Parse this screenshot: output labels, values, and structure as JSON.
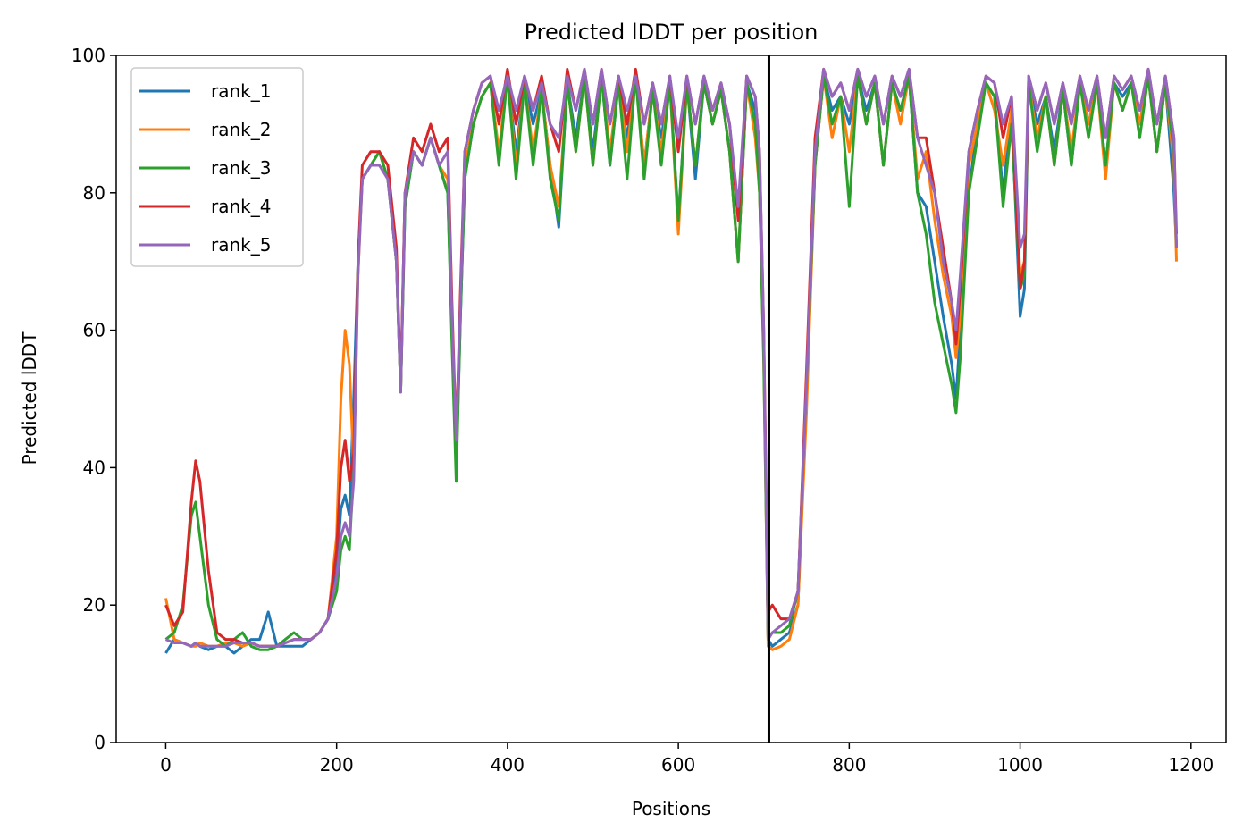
{
  "chart_data": {
    "type": "line",
    "title": "Predicted lDDT per position",
    "xlabel": "Positions",
    "ylabel": "Predicted lDDT",
    "xlim": [
      -58,
      1241
    ],
    "ylim": [
      0,
      100
    ],
    "xticks": [
      0,
      200,
      400,
      600,
      800,
      1000,
      1200
    ],
    "yticks": [
      0,
      20,
      40,
      60,
      80,
      100
    ],
    "grid": false,
    "legend_position": "upper-left",
    "vertical_line": 706,
    "x": [
      0,
      10,
      20,
      30,
      35,
      40,
      50,
      60,
      70,
      80,
      90,
      100,
      110,
      120,
      130,
      140,
      150,
      160,
      170,
      180,
      190,
      200,
      205,
      210,
      215,
      220,
      225,
      230,
      240,
      250,
      260,
      270,
      275,
      280,
      290,
      300,
      310,
      320,
      330,
      335,
      340,
      345,
      350,
      360,
      370,
      380,
      390,
      400,
      410,
      420,
      430,
      440,
      450,
      460,
      470,
      480,
      490,
      500,
      510,
      520,
      530,
      540,
      550,
      560,
      570,
      580,
      590,
      600,
      610,
      620,
      630,
      640,
      650,
      660,
      670,
      680,
      690,
      695,
      700,
      705,
      710,
      720,
      730,
      740,
      750,
      760,
      770,
      780,
      790,
      800,
      810,
      820,
      830,
      840,
      850,
      860,
      870,
      880,
      890,
      900,
      910,
      920,
      925,
      930,
      940,
      950,
      960,
      970,
      980,
      990,
      1000,
      1005,
      1010,
      1020,
      1030,
      1040,
      1050,
      1060,
      1070,
      1080,
      1090,
      1100,
      1110,
      1120,
      1130,
      1140,
      1150,
      1160,
      1170,
      1180,
      1183
    ],
    "series": [
      {
        "name": "rank_1",
        "color": "#1f77b4",
        "values": [
          13,
          15,
          14.5,
          14,
          14.5,
          14,
          13.5,
          14,
          14,
          13,
          14,
          15,
          15,
          19,
          14,
          14,
          14,
          14,
          15,
          16,
          18,
          25,
          34,
          36,
          33,
          50,
          70,
          82,
          84,
          86,
          82,
          70,
          51,
          78,
          86,
          84,
          88,
          84,
          80,
          60,
          40,
          62,
          82,
          90,
          94,
          96,
          92,
          97,
          86,
          96,
          90,
          95,
          84,
          75,
          96,
          88,
          97,
          86,
          97,
          84,
          96,
          88,
          97,
          84,
          95,
          88,
          96,
          76,
          96,
          82,
          96,
          90,
          95,
          86,
          70,
          96,
          92,
          80,
          58,
          15,
          14,
          15,
          16,
          20,
          50,
          84,
          97,
          92,
          94,
          90,
          97,
          92,
          96,
          84,
          96,
          92,
          97,
          80,
          78,
          70,
          62,
          55,
          50,
          60,
          80,
          90,
          96,
          94,
          80,
          92,
          62,
          66,
          96,
          90,
          94,
          86,
          95,
          84,
          96,
          90,
          96,
          84,
          96,
          94,
          96,
          90,
          97,
          86,
          96,
          80,
          72
        ]
      },
      {
        "name": "rank_2",
        "color": "#ff7f0e",
        "values": [
          21,
          15,
          14.5,
          14,
          14,
          14.5,
          14,
          14,
          14.5,
          14.5,
          14,
          14.5,
          14,
          14,
          14,
          14.5,
          15,
          15,
          15,
          16,
          18,
          30,
          50,
          60,
          55,
          40,
          68,
          82,
          84,
          86,
          82,
          70,
          51,
          80,
          86,
          84,
          88,
          84,
          82,
          62,
          42,
          64,
          84,
          90,
          94,
          96,
          86,
          97,
          84,
          96,
          86,
          95,
          84,
          78,
          96,
          86,
          97,
          84,
          97,
          86,
          96,
          86,
          97,
          84,
          95,
          86,
          96,
          74,
          96,
          84,
          96,
          90,
          95,
          86,
          70,
          96,
          88,
          80,
          56,
          14,
          13.5,
          14,
          15,
          20,
          48,
          84,
          97,
          88,
          94,
          86,
          97,
          90,
          96,
          84,
          96,
          90,
          97,
          82,
          86,
          76,
          68,
          62,
          56,
          62,
          84,
          90,
          96,
          92,
          84,
          92,
          68,
          70,
          96,
          88,
          94,
          84,
          95,
          86,
          96,
          90,
          96,
          82,
          96,
          92,
          96,
          90,
          97,
          86,
          96,
          84,
          70
        ]
      },
      {
        "name": "rank_3",
        "color": "#2ca02c",
        "values": [
          15,
          16,
          20,
          33,
          35,
          30,
          20,
          15,
          14,
          15,
          16,
          14,
          13.5,
          13.5,
          14,
          15,
          16,
          15,
          15,
          16,
          18,
          22,
          28,
          30,
          28,
          40,
          70,
          82,
          84,
          86,
          82,
          70,
          51,
          78,
          86,
          84,
          88,
          84,
          80,
          58,
          38,
          62,
          82,
          90,
          94,
          96,
          84,
          97,
          82,
          96,
          84,
          95,
          82,
          76,
          96,
          86,
          97,
          84,
          97,
          84,
          96,
          82,
          97,
          82,
          95,
          84,
          96,
          76,
          96,
          84,
          96,
          90,
          95,
          86,
          70,
          96,
          90,
          80,
          55,
          15,
          16,
          16,
          17,
          22,
          52,
          84,
          97,
          90,
          94,
          78,
          97,
          90,
          96,
          84,
          96,
          92,
          97,
          80,
          74,
          64,
          58,
          52,
          48,
          56,
          80,
          88,
          96,
          94,
          78,
          90,
          66,
          68,
          96,
          86,
          94,
          84,
          95,
          84,
          96,
          88,
          96,
          84,
          96,
          92,
          96,
          88,
          97,
          86,
          96,
          86,
          72
        ]
      },
      {
        "name": "rank_4",
        "color": "#d62728",
        "values": [
          20,
          17,
          19,
          35,
          41,
          38,
          25,
          16,
          15,
          15,
          14.5,
          14.5,
          14,
          14,
          14,
          14.5,
          15,
          15,
          15,
          16,
          18,
          28,
          40,
          44,
          38,
          42,
          70,
          84,
          86,
          86,
          84,
          72,
          52,
          80,
          88,
          86,
          90,
          86,
          88,
          64,
          44,
          66,
          86,
          92,
          96,
          97,
          90,
          98,
          90,
          97,
          92,
          97,
          90,
          86,
          98,
          92,
          98,
          90,
          98,
          90,
          97,
          90,
          98,
          90,
          96,
          90,
          97,
          86,
          97,
          90,
          97,
          92,
          96,
          90,
          76,
          97,
          94,
          86,
          60,
          19,
          20,
          18,
          18,
          22,
          54,
          88,
          98,
          94,
          96,
          92,
          98,
          94,
          97,
          90,
          97,
          94,
          98,
          88,
          88,
          80,
          72,
          64,
          58,
          66,
          86,
          92,
          97,
          96,
          88,
          94,
          66,
          70,
          97,
          92,
          96,
          90,
          96,
          90,
          97,
          92,
          97,
          88,
          97,
          95,
          97,
          92,
          98,
          90,
          97,
          88,
          74
        ]
      },
      {
        "name": "rank_5",
        "color": "#9467bd",
        "values": [
          15,
          14.5,
          14.5,
          14,
          14.5,
          14,
          14,
          14,
          14,
          14.5,
          14.5,
          14.5,
          14,
          14,
          14,
          14.5,
          15,
          15,
          15,
          16,
          18,
          24,
          30,
          32,
          30,
          38,
          68,
          82,
          84,
          84,
          82,
          70,
          51,
          80,
          86,
          84,
          88,
          84,
          86,
          62,
          44,
          64,
          86,
          92,
          96,
          97,
          92,
          97,
          92,
          97,
          92,
          96,
          90,
          88,
          97,
          92,
          98,
          90,
          98,
          90,
          97,
          92,
          97,
          90,
          96,
          90,
          97,
          88,
          97,
          90,
          97,
          92,
          96,
          90,
          78,
          97,
          94,
          86,
          60,
          15,
          16,
          17,
          18,
          22,
          52,
          86,
          98,
          94,
          96,
          92,
          98,
          94,
          97,
          90,
          97,
          94,
          98,
          88,
          84,
          80,
          70,
          64,
          60,
          68,
          86,
          92,
          97,
          96,
          90,
          94,
          72,
          74,
          97,
          92,
          96,
          90,
          96,
          90,
          97,
          92,
          97,
          88,
          97,
          95,
          97,
          92,
          98,
          90,
          97,
          88,
          72
        ]
      }
    ]
  }
}
